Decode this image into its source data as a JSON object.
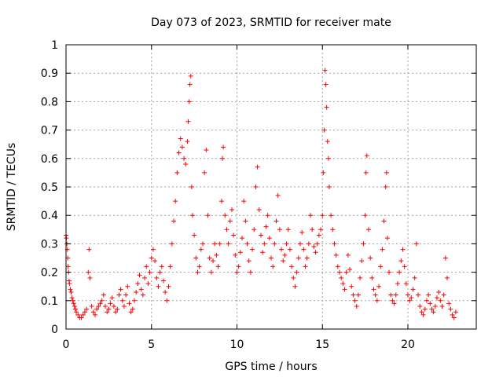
{
  "chart_data": {
    "type": "scatter",
    "title": "Day 073 of 2023, SRMTID for receiver mate",
    "xlabel": "GPS time / hours",
    "ylabel": "SRMTID / TECUs",
    "xlim": [
      0,
      24
    ],
    "ylim": [
      0,
      1
    ],
    "x_ticks": [
      0,
      5,
      10,
      15,
      20
    ],
    "x_tick_labels": [
      "0",
      "5",
      "10",
      "15",
      "20"
    ],
    "y_ticks": [
      0,
      0.1,
      0.2,
      0.3,
      0.4,
      0.5,
      0.6,
      0.7,
      0.8,
      0.9,
      1
    ],
    "y_tick_labels": [
      "0",
      "0.1",
      "0.2",
      "0.3",
      "0.4",
      "0.5",
      "0.6",
      "0.7",
      "0.8",
      "0.9",
      "1"
    ],
    "grid": true,
    "marker": "+",
    "color": "#ff0000",
    "series": [
      {
        "name": "SRMTID",
        "points": [
          [
            0.0,
            0.33
          ],
          [
            0.02,
            0.32
          ],
          [
            0.05,
            0.3
          ],
          [
            0.08,
            0.28
          ],
          [
            0.1,
            0.25
          ],
          [
            0.12,
            0.22
          ],
          [
            0.15,
            0.2
          ],
          [
            0.18,
            0.17
          ],
          [
            0.2,
            0.16
          ],
          [
            0.25,
            0.14
          ],
          [
            0.3,
            0.13
          ],
          [
            0.35,
            0.11
          ],
          [
            0.4,
            0.1
          ],
          [
            0.45,
            0.09
          ],
          [
            0.5,
            0.08
          ],
          [
            0.55,
            0.07
          ],
          [
            0.6,
            0.06
          ],
          [
            0.7,
            0.05
          ],
          [
            0.8,
            0.04
          ],
          [
            0.9,
            0.04
          ],
          [
            1.0,
            0.05
          ],
          [
            1.1,
            0.06
          ],
          [
            1.2,
            0.07
          ],
          [
            1.3,
            0.2
          ],
          [
            1.35,
            0.28
          ],
          [
            1.4,
            0.18
          ],
          [
            1.5,
            0.08
          ],
          [
            1.6,
            0.06
          ],
          [
            1.7,
            0.05
          ],
          [
            1.8,
            0.07
          ],
          [
            1.9,
            0.08
          ],
          [
            2.0,
            0.09
          ],
          [
            2.1,
            0.1
          ],
          [
            2.2,
            0.12
          ],
          [
            2.3,
            0.08
          ],
          [
            2.4,
            0.06
          ],
          [
            2.5,
            0.07
          ],
          [
            2.6,
            0.09
          ],
          [
            2.7,
            0.11
          ],
          [
            2.8,
            0.08
          ],
          [
            2.9,
            0.06
          ],
          [
            3.0,
            0.07
          ],
          [
            3.1,
            0.12
          ],
          [
            3.2,
            0.14
          ],
          [
            3.3,
            0.1
          ],
          [
            3.4,
            0.08
          ],
          [
            3.5,
            0.12
          ],
          [
            3.6,
            0.15
          ],
          [
            3.7,
            0.09
          ],
          [
            3.8,
            0.06
          ],
          [
            3.9,
            0.07
          ],
          [
            4.0,
            0.1
          ],
          [
            4.1,
            0.13
          ],
          [
            4.2,
            0.16
          ],
          [
            4.3,
            0.19
          ],
          [
            4.4,
            0.14
          ],
          [
            4.5,
            0.12
          ],
          [
            4.6,
            0.18
          ],
          [
            4.7,
            0.22
          ],
          [
            4.8,
            0.16
          ],
          [
            4.9,
            0.2
          ],
          [
            5.0,
            0.25
          ],
          [
            5.1,
            0.28
          ],
          [
            5.2,
            0.24
          ],
          [
            5.3,
            0.18
          ],
          [
            5.4,
            0.15
          ],
          [
            5.5,
            0.2
          ],
          [
            5.6,
            0.22
          ],
          [
            5.7,
            0.17
          ],
          [
            5.8,
            0.13
          ],
          [
            5.9,
            0.1
          ],
          [
            6.0,
            0.15
          ],
          [
            6.1,
            0.22
          ],
          [
            6.2,
            0.3
          ],
          [
            6.3,
            0.38
          ],
          [
            6.4,
            0.45
          ],
          [
            6.5,
            0.55
          ],
          [
            6.6,
            0.62
          ],
          [
            6.7,
            0.67
          ],
          [
            6.8,
            0.64
          ],
          [
            6.9,
            0.6
          ],
          [
            7.0,
            0.58
          ],
          [
            7.1,
            0.66
          ],
          [
            7.15,
            0.73
          ],
          [
            7.2,
            0.8
          ],
          [
            7.25,
            0.86
          ],
          [
            7.3,
            0.89
          ],
          [
            7.35,
            0.5
          ],
          [
            7.4,
            0.4
          ],
          [
            7.5,
            0.33
          ],
          [
            7.6,
            0.25
          ],
          [
            7.7,
            0.2
          ],
          [
            7.8,
            0.22
          ],
          [
            7.9,
            0.28
          ],
          [
            8.0,
            0.3
          ],
          [
            8.1,
            0.55
          ],
          [
            8.2,
            0.63
          ],
          [
            8.3,
            0.4
          ],
          [
            8.4,
            0.25
          ],
          [
            8.5,
            0.2
          ],
          [
            8.6,
            0.24
          ],
          [
            8.7,
            0.3
          ],
          [
            8.8,
            0.26
          ],
          [
            8.9,
            0.22
          ],
          [
            9.0,
            0.3
          ],
          [
            9.1,
            0.45
          ],
          [
            9.15,
            0.6
          ],
          [
            9.2,
            0.64
          ],
          [
            9.3,
            0.4
          ],
          [
            9.4,
            0.35
          ],
          [
            9.5,
            0.3
          ],
          [
            9.6,
            0.38
          ],
          [
            9.7,
            0.42
          ],
          [
            9.8,
            0.33
          ],
          [
            9.9,
            0.26
          ],
          [
            10.0,
            0.2
          ],
          [
            10.1,
            0.22
          ],
          [
            10.2,
            0.27
          ],
          [
            10.3,
            0.32
          ],
          [
            10.4,
            0.45
          ],
          [
            10.5,
            0.38
          ],
          [
            10.6,
            0.3
          ],
          [
            10.7,
            0.24
          ],
          [
            10.8,
            0.2
          ],
          [
            10.9,
            0.28
          ],
          [
            11.0,
            0.35
          ],
          [
            11.1,
            0.5
          ],
          [
            11.2,
            0.57
          ],
          [
            11.3,
            0.42
          ],
          [
            11.4,
            0.33
          ],
          [
            11.5,
            0.27
          ],
          [
            11.6,
            0.3
          ],
          [
            11.7,
            0.36
          ],
          [
            11.8,
            0.4
          ],
          [
            11.9,
            0.32
          ],
          [
            12.0,
            0.25
          ],
          [
            12.1,
            0.22
          ],
          [
            12.2,
            0.3
          ],
          [
            12.3,
            0.38
          ],
          [
            12.4,
            0.47
          ],
          [
            12.5,
            0.35
          ],
          [
            12.6,
            0.28
          ],
          [
            12.7,
            0.24
          ],
          [
            12.8,
            0.26
          ],
          [
            12.9,
            0.3
          ],
          [
            13.0,
            0.35
          ],
          [
            13.1,
            0.28
          ],
          [
            13.2,
            0.22
          ],
          [
            13.3,
            0.18
          ],
          [
            13.4,
            0.15
          ],
          [
            13.5,
            0.2
          ],
          [
            13.6,
            0.25
          ],
          [
            13.7,
            0.3
          ],
          [
            13.8,
            0.34
          ],
          [
            13.9,
            0.28
          ],
          [
            14.0,
            0.22
          ],
          [
            14.1,
            0.25
          ],
          [
            14.2,
            0.3
          ],
          [
            14.3,
            0.4
          ],
          [
            14.4,
            0.35
          ],
          [
            14.5,
            0.29
          ],
          [
            14.6,
            0.27
          ],
          [
            14.7,
            0.3
          ],
          [
            14.8,
            0.33
          ],
          [
            14.9,
            0.35
          ],
          [
            15.0,
            0.4
          ],
          [
            15.05,
            0.55
          ],
          [
            15.1,
            0.7
          ],
          [
            15.15,
            0.91
          ],
          [
            15.2,
            0.86
          ],
          [
            15.25,
            0.78
          ],
          [
            15.3,
            0.66
          ],
          [
            15.35,
            0.6
          ],
          [
            15.4,
            0.5
          ],
          [
            15.5,
            0.4
          ],
          [
            15.6,
            0.35
          ],
          [
            15.7,
            0.3
          ],
          [
            15.8,
            0.26
          ],
          [
            15.9,
            0.22
          ],
          [
            16.0,
            0.2
          ],
          [
            16.1,
            0.18
          ],
          [
            16.2,
            0.16
          ],
          [
            16.3,
            0.14
          ],
          [
            16.4,
            0.2
          ],
          [
            16.5,
            0.26
          ],
          [
            16.6,
            0.21
          ],
          [
            16.7,
            0.15
          ],
          [
            16.8,
            0.12
          ],
          [
            16.9,
            0.1
          ],
          [
            17.0,
            0.08
          ],
          [
            17.1,
            0.12
          ],
          [
            17.2,
            0.18
          ],
          [
            17.3,
            0.24
          ],
          [
            17.4,
            0.3
          ],
          [
            17.5,
            0.4
          ],
          [
            17.55,
            0.55
          ],
          [
            17.6,
            0.61
          ],
          [
            17.7,
            0.35
          ],
          [
            17.8,
            0.25
          ],
          [
            17.9,
            0.18
          ],
          [
            18.0,
            0.14
          ],
          [
            18.1,
            0.12
          ],
          [
            18.2,
            0.1
          ],
          [
            18.3,
            0.15
          ],
          [
            18.4,
            0.22
          ],
          [
            18.5,
            0.28
          ],
          [
            18.6,
            0.38
          ],
          [
            18.7,
            0.5
          ],
          [
            18.75,
            0.55
          ],
          [
            18.8,
            0.32
          ],
          [
            18.9,
            0.2
          ],
          [
            19.0,
            0.12
          ],
          [
            19.1,
            0.1
          ],
          [
            19.2,
            0.09
          ],
          [
            19.3,
            0.12
          ],
          [
            19.4,
            0.16
          ],
          [
            19.5,
            0.2
          ],
          [
            19.6,
            0.24
          ],
          [
            19.7,
            0.28
          ],
          [
            19.8,
            0.22
          ],
          [
            19.9,
            0.16
          ],
          [
            20.0,
            0.12
          ],
          [
            20.1,
            0.1
          ],
          [
            20.2,
            0.11
          ],
          [
            20.3,
            0.14
          ],
          [
            20.4,
            0.18
          ],
          [
            20.5,
            0.3
          ],
          [
            20.6,
            0.12
          ],
          [
            20.7,
            0.08
          ],
          [
            20.8,
            0.06
          ],
          [
            20.9,
            0.05
          ],
          [
            21.0,
            0.07
          ],
          [
            21.1,
            0.1
          ],
          [
            21.2,
            0.12
          ],
          [
            21.3,
            0.09
          ],
          [
            21.4,
            0.07
          ],
          [
            21.5,
            0.06
          ],
          [
            21.6,
            0.08
          ],
          [
            21.7,
            0.11
          ],
          [
            21.8,
            0.13
          ],
          [
            21.9,
            0.1
          ],
          [
            22.0,
            0.08
          ],
          [
            22.1,
            0.12
          ],
          [
            22.2,
            0.25
          ],
          [
            22.3,
            0.18
          ],
          [
            22.4,
            0.09
          ],
          [
            22.5,
            0.07
          ],
          [
            22.6,
            0.05
          ],
          [
            22.7,
            0.04
          ],
          [
            22.8,
            0.06
          ]
        ]
      }
    ]
  }
}
